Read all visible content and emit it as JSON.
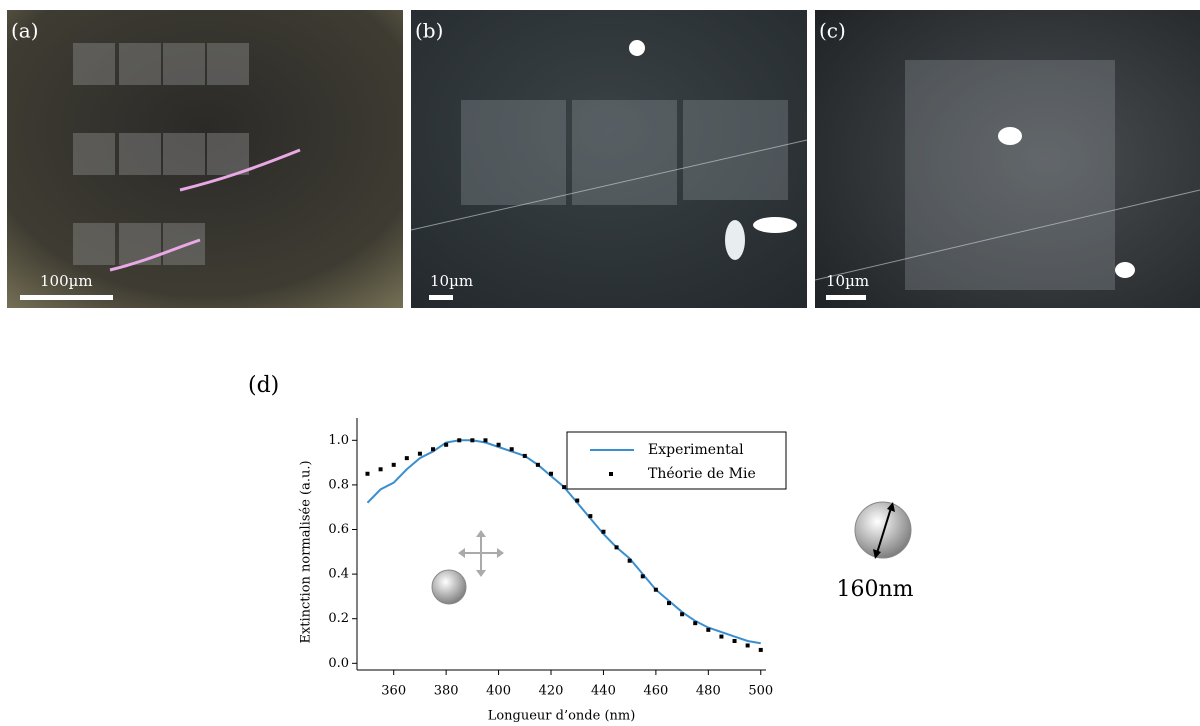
{
  "panels": [
    {
      "label": "(a)",
      "scale": "100µm"
    },
    {
      "label": "(b)",
      "scale": "10µm"
    },
    {
      "label": "(c)",
      "scale": "10µm"
    }
  ],
  "chart_label": "(d)",
  "annotation": "160nm",
  "chart_data": {
    "type": "line",
    "xlabel": "Longueur d’onde (nm)",
    "ylabel": "Extinction normalisée (a.u.)",
    "x": [
      350,
      355,
      360,
      365,
      370,
      375,
      380,
      385,
      390,
      395,
      400,
      405,
      410,
      415,
      420,
      425,
      430,
      435,
      440,
      445,
      450,
      455,
      460,
      465,
      470,
      475,
      480,
      485,
      490,
      495,
      500
    ],
    "series": [
      {
        "name": "Experimental",
        "color": "#3a8fd0",
        "style": "line",
        "values": [
          0.72,
          0.78,
          0.81,
          0.87,
          0.92,
          0.95,
          0.99,
          1.0,
          1.0,
          0.99,
          0.97,
          0.95,
          0.93,
          0.89,
          0.84,
          0.79,
          0.72,
          0.65,
          0.58,
          0.52,
          0.47,
          0.4,
          0.33,
          0.28,
          0.23,
          0.19,
          0.16,
          0.14,
          0.12,
          0.1,
          0.09
        ]
      },
      {
        "name": "Théorie de Mie",
        "color": "#000000",
        "style": "dots",
        "values": [
          0.85,
          0.87,
          0.89,
          0.92,
          0.94,
          0.96,
          0.98,
          1.0,
          1.0,
          1.0,
          0.98,
          0.96,
          0.93,
          0.89,
          0.85,
          0.79,
          0.73,
          0.66,
          0.59,
          0.52,
          0.46,
          0.39,
          0.33,
          0.27,
          0.22,
          0.18,
          0.15,
          0.12,
          0.1,
          0.08,
          0.06
        ]
      }
    ],
    "xlim": [
      346,
      502
    ],
    "ylim": [
      -0.03,
      1.1
    ],
    "xticks": [
      360,
      380,
      400,
      420,
      440,
      460,
      480,
      500
    ],
    "yticks": [
      {
        "value": 0,
        "label": "0.0"
      },
      0.2,
      0.4,
      0.6,
      0.8,
      {
        "value": 1,
        "label": "1.0"
      }
    ],
    "legend": "upper right"
  }
}
